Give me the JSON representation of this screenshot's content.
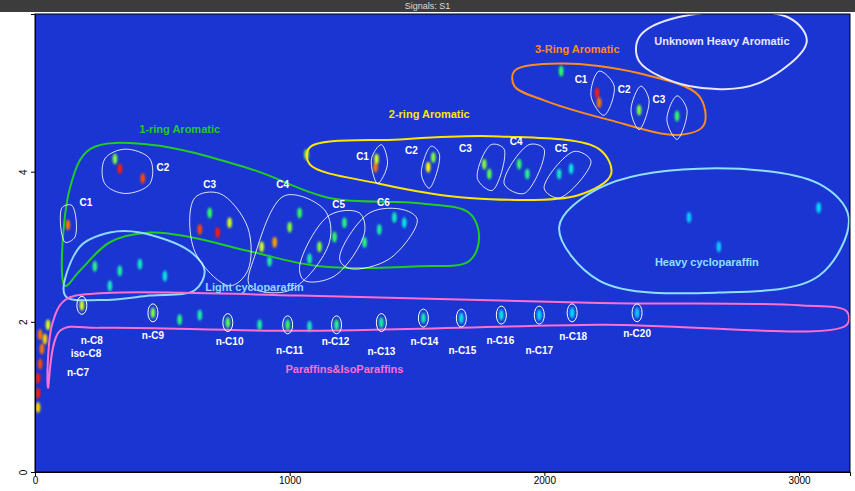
{
  "chart_data": {
    "type": "scatter",
    "title": "Signals: S1",
    "xlim": [
      0,
      3200
    ],
    "xticks": [
      0,
      1000,
      2000,
      3000
    ],
    "ylim": [
      0,
      6.1
    ],
    "yticks": [
      0,
      2,
      4
    ],
    "x": [
      12,
      12,
      20,
      27,
      20,
      39,
      51,
      12,
      129,
      333,
      423,
      314,
      647,
      717,
      764,
      686,
      890,
      941,
      1000,
      1039,
      921,
      1117,
      1176,
      1215,
      1078,
      1294,
      1352,
      1411,
      1450,
      235,
      333,
      412,
      510,
      294,
      184,
      463,
      568,
      647,
      757,
      882,
      992,
      1078,
      1184,
      1360,
      1525,
      1674,
      1831,
      1980,
      2109,
      2364,
      1066,
      1337,
      1341,
      1544,
      1564,
      1764,
      1784,
      1901,
      1933,
      2058,
      2105,
      2207,
      2215,
      2066,
      2372,
      2521,
      2568,
      2685,
      3077
    ],
    "values": [
      1.05,
      1.25,
      1.44,
      1.64,
      1.83,
      1.77,
      1.96,
      0.86,
      3.29,
      4.04,
      3.91,
      4.17,
      3.23,
      3.19,
      3.32,
      3.45,
      3.0,
      3.06,
      3.26,
      3.45,
      2.81,
      3.0,
      3.13,
      3.32,
      2.84,
      3.06,
      3.23,
      3.39,
      3.32,
      2.74,
      2.68,
      2.77,
      2.61,
      2.48,
      2.22,
      2.12,
      2.03,
      2.09,
      1.99,
      1.96,
      1.96,
      1.94,
      1.96,
      1.99,
      2.05,
      2.05,
      2.09,
      2.09,
      2.12,
      2.12,
      4.23,
      4.06,
      4.17,
      4.06,
      4.19,
      4.1,
      3.97,
      4.1,
      3.97,
      3.97,
      4.04,
      5.05,
      4.92,
      5.34,
      4.82,
      4.74,
      3.39,
      3.0,
      3.52
    ],
    "intensity": [
      1,
      1,
      0.95,
      0.9,
      0.9,
      0.8,
      0.7,
      0.8,
      0.9,
      1,
      0.95,
      0.6,
      0.95,
      1,
      0.7,
      0.5,
      0.7,
      0.85,
      0.6,
      0.5,
      0.4,
      0.6,
      0.5,
      0.45,
      0.4,
      0.45,
      0.4,
      0.35,
      0.3,
      0.45,
      0.4,
      0.35,
      0.3,
      0.35,
      0.7,
      0.6,
      0.45,
      0.4,
      0.55,
      0.4,
      0.5,
      0.35,
      0.45,
      0.4,
      0.35,
      0.3,
      0.3,
      0.25,
      0.25,
      0.2,
      0.6,
      0.9,
      0.7,
      0.75,
      0.6,
      0.6,
      0.55,
      0.5,
      0.45,
      0.35,
      0.3,
      1,
      0.9,
      0.5,
      0.6,
      0.5,
      0.2,
      0.2,
      0.25
    ],
    "regions": [
      {
        "label": "1-ring Aromatic",
        "color": "#22cc22",
        "label_x": 568,
        "label_y": 4.56,
        "outline": [
          [
            118,
            2.48
          ],
          [
            137,
            3.78
          ],
          [
            216,
            4.3
          ],
          [
            451,
            4.36
          ],
          [
            843,
            4.04
          ],
          [
            1156,
            3.65
          ],
          [
            1509,
            3.58
          ],
          [
            1705,
            3.45
          ],
          [
            1744,
            3.13
          ],
          [
            1705,
            2.81
          ],
          [
            1509,
            2.74
          ],
          [
            1117,
            2.74
          ],
          [
            843,
            2.94
          ],
          [
            608,
            3.13
          ],
          [
            451,
            3.19
          ],
          [
            294,
            3.06
          ],
          [
            176,
            2.68
          ]
        ]
      },
      {
        "label": "Light cycloparaffin",
        "color": "#8fd8ff",
        "label_x": 862,
        "label_y": 2.45,
        "outline": [
          [
            118,
            2.35
          ],
          [
            176,
            3.0
          ],
          [
            294,
            3.19
          ],
          [
            412,
            3.19
          ],
          [
            608,
            2.94
          ],
          [
            666,
            2.68
          ],
          [
            627,
            2.42
          ],
          [
            451,
            2.35
          ],
          [
            255,
            2.29
          ]
        ]
      },
      {
        "label": "Paraffins&IsoParaffins",
        "color": "#ff6fcf",
        "label_x": 1215,
        "label_y": 1.36,
        "outline": [
          [
            51,
            1.12
          ],
          [
            67,
            1.96
          ],
          [
            118,
            2.29
          ],
          [
            255,
            2.38
          ],
          [
            1039,
            2.35
          ],
          [
            2215,
            2.25
          ],
          [
            2999,
            2.22
          ],
          [
            3187,
            2.14
          ],
          [
            3187,
            1.96
          ],
          [
            2215,
            1.96
          ],
          [
            1039,
            1.88
          ],
          [
            255,
            1.92
          ],
          [
            98,
            1.88
          ]
        ]
      },
      {
        "label": "2-ring Aromatic",
        "color": "#ffe600",
        "label_x": 1548,
        "label_y": 4.75,
        "outline": [
          [
            1078,
            4.32
          ],
          [
            1431,
            4.43
          ],
          [
            1823,
            4.47
          ],
          [
            2215,
            4.3
          ],
          [
            2262,
            3.97
          ],
          [
            2136,
            3.69
          ],
          [
            1705,
            3.65
          ],
          [
            1352,
            3.84
          ],
          [
            1078,
            4.1
          ]
        ]
      },
      {
        "label": "3-Ring Aromatic",
        "color": "#ff8a1e",
        "label_x": 2129,
        "label_y": 5.62,
        "outline": [
          [
            1882,
            5.34
          ],
          [
            2058,
            5.44
          ],
          [
            2372,
            5.31
          ],
          [
            2607,
            5.01
          ],
          [
            2626,
            4.62
          ],
          [
            2528,
            4.49
          ],
          [
            2254,
            4.69
          ],
          [
            1999,
            4.95
          ],
          [
            1882,
            5.14
          ]
        ]
      },
      {
        "label": "Unknown Heavy Aromatic",
        "color": "#e6e6ff",
        "label_x": 2697,
        "label_y": 5.73,
        "outline": [
          [
            2372,
            5.79
          ],
          [
            2528,
            6.06
          ],
          [
            2960,
            6.05
          ],
          [
            3030,
            5.73
          ],
          [
            2842,
            5.18
          ],
          [
            2568,
            5.14
          ],
          [
            2372,
            5.47
          ]
        ]
      },
      {
        "label": "Heavy cycloparaffin",
        "color": "#8fe0ff",
        "label_x": 2638,
        "label_y": 2.78,
        "outline": [
          [
            2058,
            3.26
          ],
          [
            2215,
            3.78
          ],
          [
            2607,
            4.04
          ],
          [
            3077,
            3.84
          ],
          [
            3195,
            3.39
          ],
          [
            3077,
            2.61
          ],
          [
            2685,
            2.39
          ],
          [
            2215,
            2.55
          ]
        ]
      }
    ],
    "groups": [
      {
        "label": "C1",
        "label_x": 200,
        "label_y": 3.58,
        "outline": [
          [
            106,
            3.52
          ],
          [
            145,
            3.55
          ],
          [
            157,
            3.13
          ],
          [
            118,
            3.06
          ]
        ]
      },
      {
        "label": "C2",
        "label_x": 502,
        "label_y": 4.04,
        "outline": [
          [
            274,
            4.17
          ],
          [
            353,
            4.3
          ],
          [
            451,
            4.17
          ],
          [
            451,
            3.84
          ],
          [
            353,
            3.71
          ],
          [
            274,
            3.84
          ]
        ]
      },
      {
        "label": "C3",
        "label_x": 686,
        "label_y": 3.82,
        "outline": [
          [
            627,
            3.65
          ],
          [
            725,
            3.71
          ],
          [
            835,
            3.26
          ],
          [
            835,
            2.68
          ],
          [
            764,
            2.48
          ],
          [
            627,
            2.94
          ]
        ]
      },
      {
        "label": "C4",
        "label_x": 972,
        "label_y": 3.82,
        "outline": [
          [
            862,
            2.87
          ],
          [
            980,
            3.68
          ],
          [
            1137,
            3.49
          ],
          [
            1156,
            3.06
          ],
          [
            1000,
            2.42
          ],
          [
            843,
            2.48
          ]
        ]
      },
      {
        "label": "C5",
        "label_x": 1192,
        "label_y": 3.55,
        "outline": [
          [
            1039,
            2.74
          ],
          [
            1156,
            3.42
          ],
          [
            1274,
            3.45
          ],
          [
            1294,
            3.19
          ],
          [
            1176,
            2.61
          ],
          [
            1058,
            2.55
          ]
        ]
      },
      {
        "label": "C6",
        "label_x": 1368,
        "label_y": 3.58,
        "outline": [
          [
            1196,
            2.84
          ],
          [
            1313,
            3.45
          ],
          [
            1450,
            3.49
          ],
          [
            1501,
            3.36
          ],
          [
            1392,
            2.84
          ],
          [
            1235,
            2.71
          ]
        ]
      },
      {
        "label": "C1",
        "label_x": 1286,
        "label_y": 4.19,
        "outline": [
          [
            1321,
            4.17
          ],
          [
            1360,
            4.36
          ],
          [
            1384,
            4.1
          ],
          [
            1345,
            3.84
          ]
        ]
      },
      {
        "label": "C2",
        "label_x": 1478,
        "label_y": 4.27,
        "outline": [
          [
            1517,
            3.97
          ],
          [
            1556,
            4.34
          ],
          [
            1588,
            4.23
          ],
          [
            1548,
            3.78
          ]
        ]
      },
      {
        "label": "C3",
        "label_x": 1690,
        "label_y": 4.3,
        "outline": [
          [
            1737,
            3.91
          ],
          [
            1791,
            4.36
          ],
          [
            1842,
            4.3
          ],
          [
            1795,
            3.75
          ]
        ]
      },
      {
        "label": "C4",
        "label_x": 1889,
        "label_y": 4.39,
        "outline": [
          [
            1842,
            3.84
          ],
          [
            1940,
            4.36
          ],
          [
            1999,
            4.3
          ],
          [
            1921,
            3.71
          ]
        ]
      },
      {
        "label": "C5",
        "label_x": 2066,
        "label_y": 4.3,
        "outline": [
          [
            1999,
            3.78
          ],
          [
            2117,
            4.27
          ],
          [
            2183,
            4.14
          ],
          [
            2058,
            3.65
          ]
        ]
      },
      {
        "label": "C1",
        "label_x": 2144,
        "label_y": 5.21,
        "outline": [
          [
            2183,
            5.01
          ],
          [
            2215,
            5.34
          ],
          [
            2274,
            5.14
          ],
          [
            2234,
            4.75
          ]
        ]
      },
      {
        "label": "C2",
        "label_x": 2313,
        "label_y": 5.08,
        "outline": [
          [
            2340,
            4.82
          ],
          [
            2379,
            5.14
          ],
          [
            2411,
            4.95
          ],
          [
            2372,
            4.56
          ]
        ]
      },
      {
        "label": "C3",
        "label_x": 2450,
        "label_y": 4.95,
        "outline": [
          [
            2481,
            4.69
          ],
          [
            2521,
            5.01
          ],
          [
            2560,
            4.82
          ],
          [
            2521,
            4.43
          ]
        ]
      }
    ],
    "compounds": [
      {
        "label": "n-C7",
        "label_x": 169,
        "label_y": 1.31
      },
      {
        "label": "iso-C8",
        "label_x": 200,
        "label_y": 1.57
      },
      {
        "label": "n-C8",
        "label_x": 223,
        "label_y": 1.74,
        "x": 184,
        "y": 2.22
      },
      {
        "label": "n-C9",
        "label_x": 463,
        "label_y": 1.81,
        "x": 463,
        "y": 2.12
      },
      {
        "label": "n-C10",
        "label_x": 764,
        "label_y": 1.73,
        "x": 757,
        "y": 1.99
      },
      {
        "label": "n-C11",
        "label_x": 1000,
        "label_y": 1.61,
        "x": 992,
        "y": 1.96
      },
      {
        "label": "n-C12",
        "label_x": 1180,
        "label_y": 1.73,
        "x": 1184,
        "y": 1.96
      },
      {
        "label": "n-C13",
        "label_x": 1360,
        "label_y": 1.6,
        "x": 1360,
        "y": 1.99
      },
      {
        "label": "n-C14",
        "label_x": 1529,
        "label_y": 1.73,
        "x": 1525,
        "y": 2.05
      },
      {
        "label": "n-C15",
        "label_x": 1678,
        "label_y": 1.61,
        "x": 1674,
        "y": 2.05
      },
      {
        "label": "n-C16",
        "label_x": 1827,
        "label_y": 1.74,
        "x": 1831,
        "y": 2.09
      },
      {
        "label": "n-C17",
        "label_x": 1980,
        "label_y": 1.61,
        "x": 1980,
        "y": 2.09
      },
      {
        "label": "n-C18",
        "label_x": 2113,
        "label_y": 1.79,
        "x": 2109,
        "y": 2.12
      },
      {
        "label": "n-C20",
        "label_x": 2364,
        "label_y": 1.83,
        "x": 2364,
        "y": 2.12
      }
    ]
  }
}
